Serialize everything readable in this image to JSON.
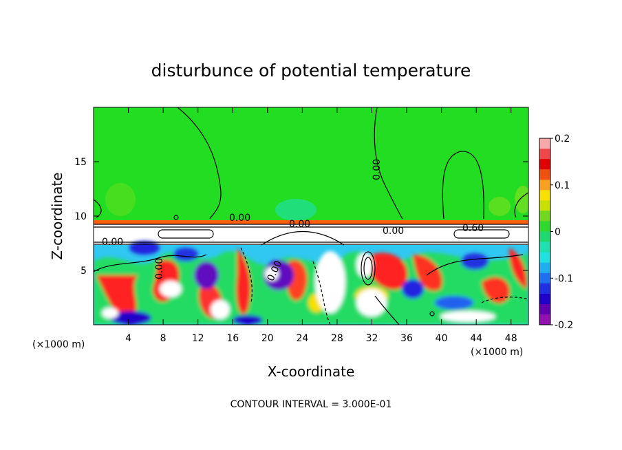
{
  "chart_data": {
    "type": "heatmap",
    "title": "disturbunce of potential temperature",
    "xlabel": "X-coordinate",
    "ylabel": "Z-coordinate",
    "x_unit": "(×1000 m)",
    "x_unit_right": "(×1000 m)",
    "xlim": [
      0,
      50
    ],
    "ylim": [
      0,
      20
    ],
    "x_ticks": [
      4,
      8,
      12,
      16,
      20,
      24,
      28,
      32,
      36,
      40,
      44,
      48
    ],
    "y_ticks": [
      5,
      10,
      15
    ],
    "colorbar": {
      "range": [
        -0.2,
        0.2
      ],
      "tick_labels": [
        "0.2",
        "0.1",
        "0",
        "-0.1",
        "-0.2"
      ],
      "tick_values": [
        0.2,
        0.1,
        0,
        -0.1,
        -0.2
      ],
      "colors": [
        "#f7a8a8",
        "#f04848",
        "#e00000",
        "#f05010",
        "#f8a020",
        "#f8e000",
        "#c8e000",
        "#70d820",
        "#30d830",
        "#20d870",
        "#20e0b0",
        "#20e0e0",
        "#20b0f0",
        "#2070f0",
        "#2030e0",
        "#2000c8",
        "#6000b0",
        "#9010b0"
      ]
    },
    "contour_labels": [
      "0.00",
      "0.00",
      "0.00",
      "0.00",
      "0.00",
      "0.00",
      "0.60",
      "0.00"
    ],
    "contour_interval_text": "CONTOUR INTERVAL = 3.000E-01",
    "colors": {
      "background_field": "#22dd22",
      "cold_anomaly": "#2020e0",
      "warm_anomaly": "#ff2020"
    }
  }
}
